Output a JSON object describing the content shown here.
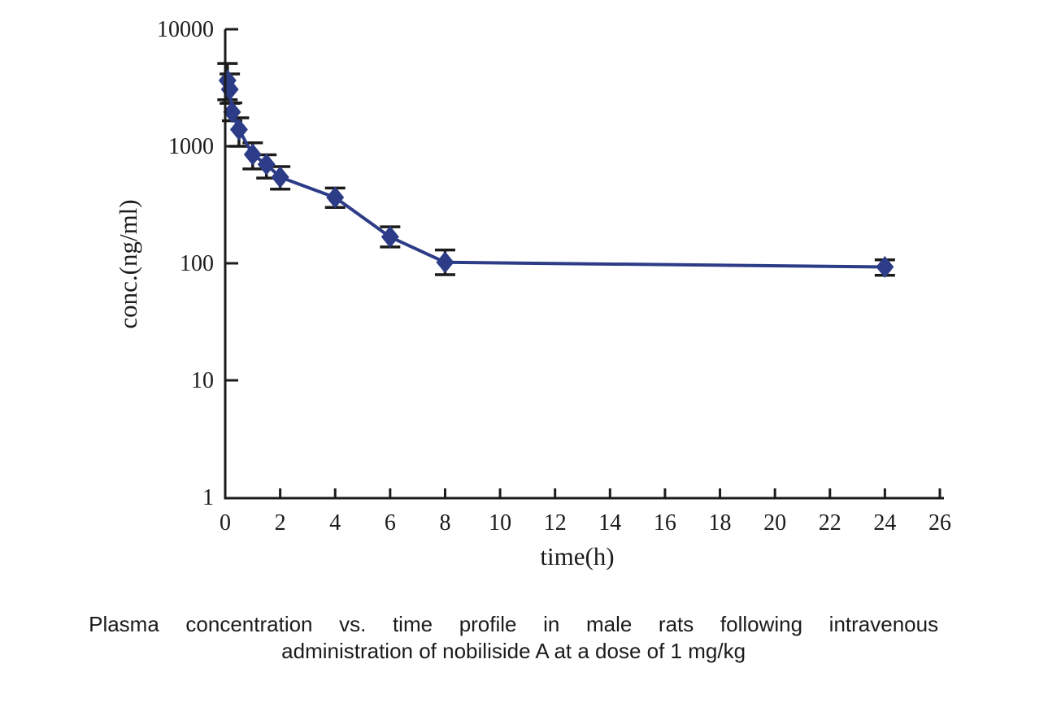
{
  "chart_data": {
    "type": "line",
    "title": "",
    "xlabel": "time(h)",
    "ylabel": "conc.(ng/ml)",
    "x_axis": {
      "scale": "linear",
      "min": 0,
      "max": 26,
      "ticks": [
        0,
        2,
        4,
        6,
        8,
        10,
        12,
        14,
        16,
        18,
        20,
        22,
        24,
        26
      ],
      "tick_labels": [
        "0",
        "2",
        "4",
        "6",
        "8",
        "10",
        "12",
        "14",
        "16",
        "18",
        "20",
        "22",
        "24",
        "26"
      ]
    },
    "y_axis": {
      "scale": "log",
      "min": 1,
      "max": 10000,
      "ticks": [
        1,
        10,
        100,
        1000,
        10000
      ],
      "tick_labels": [
        "1",
        "10",
        "100",
        "1000",
        "10000"
      ]
    },
    "grid": false,
    "legend": "none",
    "series": [
      {
        "name": "nobiliside A 1 mg/kg",
        "marker": "diamond",
        "color": "#2d3c87",
        "error_bar_color": "#1b1b1b",
        "x": [
          0.083,
          0.167,
          0.25,
          0.5,
          1,
          1.5,
          2,
          4,
          6,
          8,
          24
        ],
        "y": [
          3650,
          3060,
          1960,
          1390,
          850,
          700,
          545,
          365,
          168,
          102,
          93
        ],
        "y_err_low": [
          2500,
          2330,
          1650,
          1000,
          640,
          535,
          430,
          300,
          138,
          80,
          79
        ],
        "y_err_high": [
          5100,
          4150,
          2350,
          1750,
          1070,
          845,
          670,
          440,
          205,
          130,
          107
        ]
      }
    ]
  },
  "caption": {
    "line1": "Plasma concentration vs. time profile in male rats following intravenous",
    "line2": "administration of nobiliside A at a dose of 1 mg/kg"
  },
  "colors": {
    "series": "#2d3c87",
    "axis": "#1b1b1b",
    "background": "#ffffff"
  }
}
